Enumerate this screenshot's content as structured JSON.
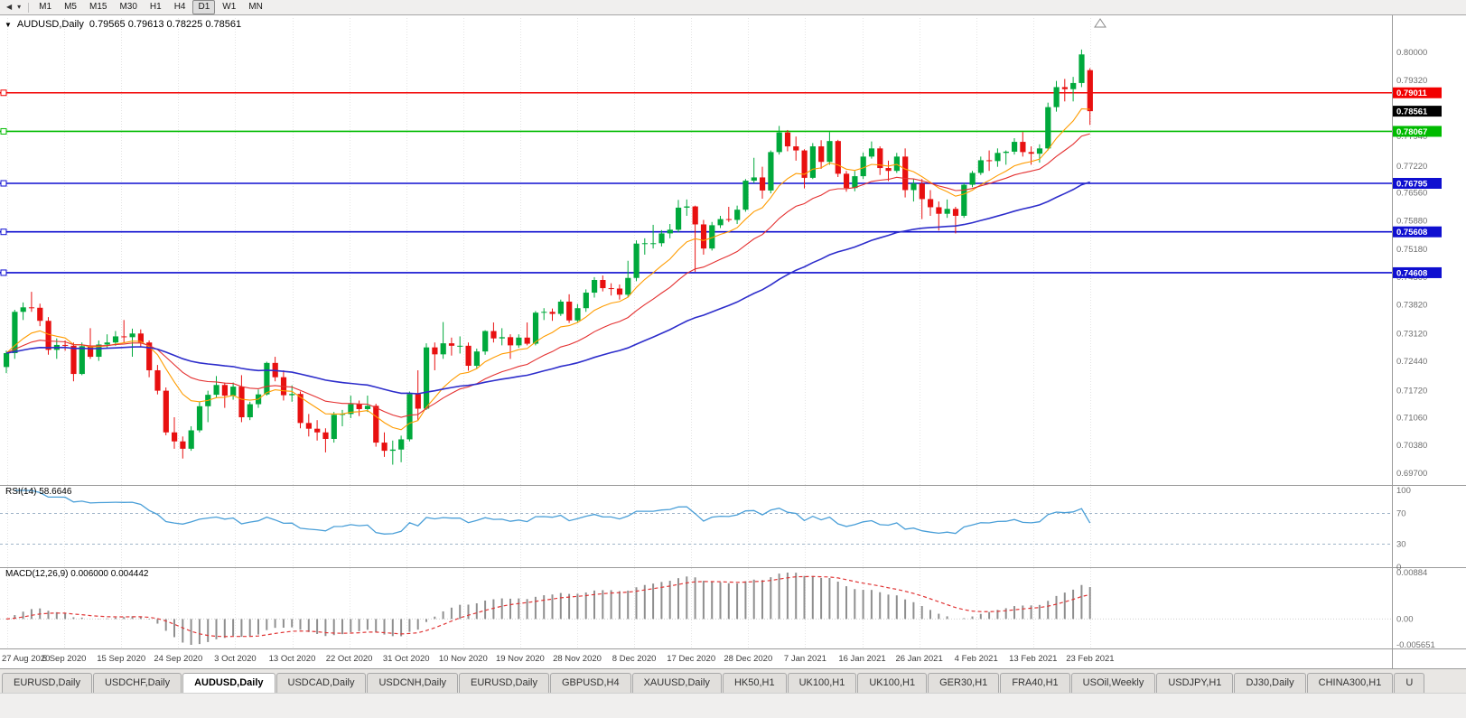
{
  "toolbar": {
    "icons": [
      {
        "name": "charts-bar-icon",
        "glyph": "◀"
      },
      {
        "name": "dropdown-caret-icon",
        "glyph": "▾"
      }
    ],
    "timeframes": [
      "M1",
      "M5",
      "M15",
      "M30",
      "H1",
      "H4",
      "D1",
      "W1",
      "MN"
    ],
    "active_timeframe": "D1"
  },
  "chart_header": {
    "collapse_icon": "▼",
    "symbol": "AUDUSD,Daily",
    "ohlc": "0.79565 0.79613 0.78225 0.78561"
  },
  "panels": {
    "rsi_label": "RSI(14) 58.6646",
    "macd_label": "MACD(12,26,9) 0.006000 0.004442"
  },
  "tabs": {
    "active_index": 2,
    "items": [
      "EURUSD,Daily",
      "USDCHF,Daily",
      "AUDUSD,Daily",
      "USDCAD,Daily",
      "USDCNH,Daily",
      "EURUSD,Daily",
      "GBPUSD,H4",
      "XAUUSD,Daily",
      "HK50,H1",
      "UK100,H1",
      "UK100,H1",
      "GER30,H1",
      "FRA40,H1",
      "USOil,Weekly",
      "USDJPY,H1",
      "DJ30,Daily",
      "CHINA300,H1",
      "U"
    ]
  },
  "chart_data": {
    "type": "candlestick",
    "symbol": "AUDUSD",
    "timeframe": "Daily",
    "current_bar": {
      "open": 0.79565,
      "high": 0.79613,
      "low": 0.78225,
      "close": 0.78561
    },
    "current_price_tag": "0.78561",
    "price_axis_labels": [
      "0.80000",
      "0.79320",
      "0.77940",
      "0.77220",
      "0.76560",
      "0.75880",
      "0.75180",
      "0.74500",
      "0.73820",
      "0.73120",
      "0.72440",
      "0.71720",
      "0.71060",
      "0.70380",
      "0.69700"
    ],
    "hlines": [
      {
        "price": 0.79011,
        "label": "0.79011",
        "color": "#f20000"
      },
      {
        "price": 0.78067,
        "label": "0.78067",
        "color": "#00bb00"
      },
      {
        "price": 0.76795,
        "label": "0.76795",
        "color": "#0f0fd0"
      },
      {
        "price": 0.75608,
        "label": "0.75608",
        "color": "#0f0fd0"
      },
      {
        "price": 0.74608,
        "label": "0.74608",
        "color": "#0f0fd0"
      }
    ],
    "date_labels": [
      "27 Aug 2020",
      "5 Sep 2020",
      "15 Sep 2020",
      "24 Sep 2020",
      "3 Oct 2020",
      "13 Oct 2020",
      "22 Oct 2020",
      "31 Oct 2020",
      "10 Nov 2020",
      "19 Nov 2020",
      "28 Nov 2020",
      "8 Dec 2020",
      "17 Dec 2020",
      "28 Dec 2020",
      "7 Jan 2021",
      "16 Jan 2021",
      "26 Jan 2021",
      "4 Feb 2021",
      "13 Feb 2021",
      "23 Feb 2021"
    ],
    "rsi": {
      "period": 14,
      "current": 58.6646,
      "levels": [
        100,
        70,
        30,
        0
      ],
      "upper": 70,
      "lower": 30,
      "color": "#4a9fd8"
    },
    "macd": {
      "fast": 12,
      "slow": 26,
      "signal": 9,
      "current": 0.006,
      "signal_current": 0.004442,
      "axis_labels": [
        "0.00884",
        "0.00",
        "-0.005651"
      ]
    },
    "overlays": [
      {
        "name": "ma-fast-line",
        "period": 10,
        "color": "#ff9c00",
        "width": 1.1
      },
      {
        "name": "ma-mid-line",
        "period": 21,
        "color": "#e43030",
        "width": 1.1
      },
      {
        "name": "ma-slow-line",
        "period": 55,
        "color": "#2d2dcb",
        "width": 1.6
      }
    ],
    "colors": {
      "bull": "#00a93c",
      "bear": "#e81010"
    },
    "candles": [
      [
        0.723,
        0.727,
        0.7215,
        0.7264
      ],
      [
        0.7264,
        0.737,
        0.725,
        0.7365
      ],
      [
        0.7365,
        0.7388,
        0.7345,
        0.7376
      ],
      [
        0.7376,
        0.7414,
        0.7365,
        0.7375
      ],
      [
        0.7375,
        0.7385,
        0.733,
        0.7343
      ],
      [
        0.7343,
        0.7352,
        0.726,
        0.7272
      ],
      [
        0.7272,
        0.73,
        0.725,
        0.7284
      ],
      [
        0.7284,
        0.7295,
        0.727,
        0.7282
      ],
      [
        0.7282,
        0.729,
        0.7195,
        0.7213
      ],
      [
        0.7213,
        0.729,
        0.721,
        0.7281
      ],
      [
        0.7281,
        0.7325,
        0.725,
        0.7255
      ],
      [
        0.7255,
        0.7295,
        0.7245,
        0.7285
      ],
      [
        0.7285,
        0.731,
        0.7275,
        0.729
      ],
      [
        0.729,
        0.7318,
        0.7282,
        0.7305
      ],
      [
        0.7305,
        0.7345,
        0.729,
        0.7303
      ],
      [
        0.7303,
        0.7324,
        0.7255,
        0.7312
      ],
      [
        0.7312,
        0.7322,
        0.728,
        0.729
      ],
      [
        0.729,
        0.7295,
        0.7205,
        0.7222
      ],
      [
        0.7222,
        0.7235,
        0.7163,
        0.7172
      ],
      [
        0.7172,
        0.718,
        0.7063,
        0.707
      ],
      [
        0.707,
        0.7107,
        0.703,
        0.7048
      ],
      [
        0.7048,
        0.706,
        0.7006,
        0.703
      ],
      [
        0.703,
        0.7085,
        0.7025,
        0.7075
      ],
      [
        0.7075,
        0.7145,
        0.707,
        0.7134
      ],
      [
        0.7134,
        0.7172,
        0.7095,
        0.7162
      ],
      [
        0.7162,
        0.7208,
        0.7155,
        0.7186
      ],
      [
        0.7186,
        0.7192,
        0.713,
        0.716
      ],
      [
        0.716,
        0.7192,
        0.715,
        0.7182
      ],
      [
        0.7182,
        0.721,
        0.7095,
        0.7107
      ],
      [
        0.7107,
        0.7145,
        0.71,
        0.7139
      ],
      [
        0.7139,
        0.7175,
        0.713,
        0.7163
      ],
      [
        0.7163,
        0.7243,
        0.716,
        0.724
      ],
      [
        0.724,
        0.7255,
        0.7195,
        0.7205
      ],
      [
        0.7205,
        0.7222,
        0.7148,
        0.7161
      ],
      [
        0.7161,
        0.7185,
        0.7145,
        0.7164
      ],
      [
        0.7164,
        0.717,
        0.708,
        0.7093
      ],
      [
        0.7093,
        0.7115,
        0.706,
        0.7079
      ],
      [
        0.7079,
        0.71,
        0.705,
        0.707
      ],
      [
        0.707,
        0.708,
        0.7021,
        0.7054
      ],
      [
        0.7054,
        0.712,
        0.7045,
        0.7113
      ],
      [
        0.7113,
        0.7125,
        0.7085,
        0.7115
      ],
      [
        0.7115,
        0.716,
        0.7105,
        0.7139
      ],
      [
        0.7139,
        0.7148,
        0.711,
        0.7127
      ],
      [
        0.7127,
        0.716,
        0.712,
        0.7135
      ],
      [
        0.7135,
        0.714,
        0.7035,
        0.7045
      ],
      [
        0.7045,
        0.707,
        0.701,
        0.7025
      ],
      [
        0.7025,
        0.705,
        0.6991,
        0.7028
      ],
      [
        0.7028,
        0.7062,
        0.6997,
        0.7053
      ],
      [
        0.7053,
        0.717,
        0.7048,
        0.7164
      ],
      [
        0.7164,
        0.7222,
        0.71,
        0.7128
      ],
      [
        0.7128,
        0.7288,
        0.7125,
        0.7278
      ],
      [
        0.7278,
        0.729,
        0.7222,
        0.7261
      ],
      [
        0.7261,
        0.734,
        0.725,
        0.7288
      ],
      [
        0.7288,
        0.7302,
        0.7258,
        0.7282
      ],
      [
        0.7282,
        0.7305,
        0.7263,
        0.7282
      ],
      [
        0.7282,
        0.729,
        0.7221,
        0.7233
      ],
      [
        0.7233,
        0.7275,
        0.7225,
        0.7268
      ],
      [
        0.7268,
        0.732,
        0.726,
        0.7318
      ],
      [
        0.7318,
        0.7339,
        0.729,
        0.73
      ],
      [
        0.73,
        0.7325,
        0.7283,
        0.7303
      ],
      [
        0.7303,
        0.731,
        0.725,
        0.7283
      ],
      [
        0.7283,
        0.731,
        0.7277,
        0.7302
      ],
      [
        0.7302,
        0.7339,
        0.7283,
        0.7287
      ],
      [
        0.7287,
        0.7367,
        0.7283,
        0.7363
      ],
      [
        0.7363,
        0.7374,
        0.7345,
        0.7365
      ],
      [
        0.7365,
        0.7373,
        0.7343,
        0.736
      ],
      [
        0.736,
        0.7395,
        0.7355,
        0.739
      ],
      [
        0.739,
        0.7408,
        0.7338,
        0.7344
      ],
      [
        0.7344,
        0.7384,
        0.7338,
        0.7374
      ],
      [
        0.7374,
        0.742,
        0.7365,
        0.7412
      ],
      [
        0.7412,
        0.745,
        0.74,
        0.7443
      ],
      [
        0.7443,
        0.7454,
        0.7415,
        0.7423
      ],
      [
        0.7423,
        0.7435,
        0.7405,
        0.7422
      ],
      [
        0.7422,
        0.7432,
        0.7395,
        0.7407
      ],
      [
        0.7407,
        0.749,
        0.74,
        0.7448
      ],
      [
        0.7448,
        0.754,
        0.744,
        0.7532
      ],
      [
        0.7532,
        0.7545,
        0.7505,
        0.7533
      ],
      [
        0.7533,
        0.7578,
        0.752,
        0.7533
      ],
      [
        0.7533,
        0.7565,
        0.7525,
        0.7557
      ],
      [
        0.7557,
        0.758,
        0.7545,
        0.7566
      ],
      [
        0.7566,
        0.7639,
        0.756,
        0.762
      ],
      [
        0.762,
        0.764,
        0.76,
        0.7623
      ],
      [
        0.7623,
        0.7625,
        0.7463,
        0.7579
      ],
      [
        0.7579,
        0.759,
        0.7505,
        0.752
      ],
      [
        0.752,
        0.7585,
        0.7515,
        0.7577
      ],
      [
        0.7577,
        0.76,
        0.757,
        0.7592
      ],
      [
        0.7592,
        0.7622,
        0.7585,
        0.759
      ],
      [
        0.759,
        0.7625,
        0.758,
        0.7615
      ],
      [
        0.7615,
        0.769,
        0.761,
        0.7686
      ],
      [
        0.7686,
        0.7742,
        0.768,
        0.7694
      ],
      [
        0.7694,
        0.772,
        0.7642,
        0.7662
      ],
      [
        0.7662,
        0.776,
        0.7655,
        0.7756
      ],
      [
        0.7756,
        0.782,
        0.775,
        0.7804
      ],
      [
        0.7804,
        0.781,
        0.7758,
        0.777
      ],
      [
        0.777,
        0.7794,
        0.7735,
        0.776
      ],
      [
        0.776,
        0.7763,
        0.7667,
        0.7693
      ],
      [
        0.7693,
        0.7778,
        0.769,
        0.777
      ],
      [
        0.777,
        0.7785,
        0.7715,
        0.7732
      ],
      [
        0.7732,
        0.7805,
        0.7725,
        0.7783
      ],
      [
        0.7783,
        0.7786,
        0.7695,
        0.7703
      ],
      [
        0.7703,
        0.771,
        0.7659,
        0.7668
      ],
      [
        0.7668,
        0.771,
        0.766,
        0.7697
      ],
      [
        0.7697,
        0.7755,
        0.769,
        0.7745
      ],
      [
        0.7745,
        0.7782,
        0.774,
        0.7765
      ],
      [
        0.7765,
        0.777,
        0.77,
        0.7717
      ],
      [
        0.7717,
        0.7735,
        0.7685,
        0.771
      ],
      [
        0.771,
        0.7754,
        0.7705,
        0.7745
      ],
      [
        0.7745,
        0.7765,
        0.7645,
        0.7663
      ],
      [
        0.7663,
        0.769,
        0.7635,
        0.7679
      ],
      [
        0.7679,
        0.769,
        0.7592,
        0.7641
      ],
      [
        0.7641,
        0.7663,
        0.76,
        0.7621
      ],
      [
        0.7621,
        0.7635,
        0.7564,
        0.7605
      ],
      [
        0.7605,
        0.764,
        0.7595,
        0.7617
      ],
      [
        0.7617,
        0.7622,
        0.7557,
        0.76
      ],
      [
        0.76,
        0.768,
        0.7595,
        0.7676
      ],
      [
        0.7676,
        0.771,
        0.767,
        0.7705
      ],
      [
        0.7705,
        0.7745,
        0.77,
        0.7736
      ],
      [
        0.7736,
        0.776,
        0.771,
        0.7734
      ],
      [
        0.7734,
        0.7765,
        0.772,
        0.7754
      ],
      [
        0.7754,
        0.776,
        0.7725,
        0.7757
      ],
      [
        0.7757,
        0.779,
        0.775,
        0.7781
      ],
      [
        0.7781,
        0.7805,
        0.7745,
        0.7756
      ],
      [
        0.7756,
        0.777,
        0.7725,
        0.7752
      ],
      [
        0.7752,
        0.7775,
        0.773,
        0.7765
      ],
      [
        0.7765,
        0.7877,
        0.776,
        0.7866
      ],
      [
        0.7866,
        0.793,
        0.7855,
        0.7915
      ],
      [
        0.7915,
        0.7935,
        0.788,
        0.791
      ],
      [
        0.791,
        0.794,
        0.788,
        0.7925
      ],
      [
        0.7925,
        0.8007,
        0.7915,
        0.7995
      ],
      [
        0.79565,
        0.79613,
        0.78225,
        0.78561
      ]
    ]
  }
}
